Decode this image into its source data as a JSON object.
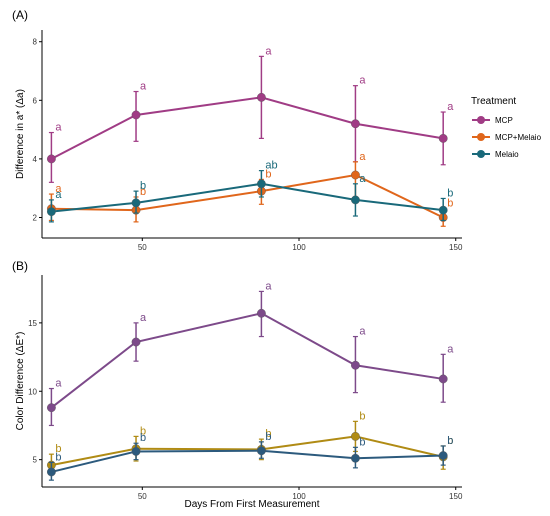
{
  "chart_data": [
    {
      "type": "line",
      "panel_label": "(A)",
      "ylabel": "Difference in a* (Δa)",
      "xlabel": "",
      "xlim": [
        18,
        152
      ],
      "ylim": [
        1.3,
        8.4
      ],
      "xticks": [
        50,
        100,
        150
      ],
      "yticks": [
        2,
        4,
        6,
        8
      ],
      "grid": false,
      "series": [
        {
          "name": "MCP",
          "color": "#a03c85",
          "x": [
            21,
            48,
            88,
            118,
            146
          ],
          "y": [
            4.0,
            5.5,
            6.1,
            5.2,
            4.7
          ],
          "err_low": [
            3.2,
            4.6,
            4.7,
            3.9,
            3.8
          ],
          "err_high": [
            4.9,
            6.3,
            7.5,
            6.5,
            5.6
          ],
          "letters": [
            "a",
            "a",
            "a",
            "a",
            "a"
          ]
        },
        {
          "name": "MCP+Melaio",
          "color": "#e0661b",
          "x": [
            21,
            48,
            88,
            118,
            146
          ],
          "y": [
            2.3,
            2.25,
            2.9,
            3.45,
            2.0
          ],
          "err_low": [
            1.9,
            1.85,
            2.45,
            2.7,
            1.7
          ],
          "err_high": [
            2.8,
            2.7,
            3.3,
            3.9,
            2.3
          ],
          "letters": [
            "a",
            "b",
            "b",
            "a",
            "b"
          ]
        },
        {
          "name": "Melaio",
          "color": "#19697a",
          "x": [
            21,
            48,
            88,
            118,
            146
          ],
          "y": [
            2.2,
            2.5,
            3.15,
            2.6,
            2.25
          ],
          "err_low": [
            1.85,
            2.15,
            2.7,
            2.05,
            1.9
          ],
          "err_high": [
            2.6,
            2.9,
            3.6,
            3.15,
            2.65
          ],
          "letters": [
            "a",
            "b",
            "ab",
            "a",
            "b"
          ]
        }
      ]
    },
    {
      "type": "line",
      "panel_label": "(B)",
      "ylabel": "Color Difference (ΔE*)",
      "xlabel": "Days From First Measurement",
      "xlim": [
        18,
        152
      ],
      "ylim": [
        3.0,
        18.5
      ],
      "xticks": [
        50,
        100,
        150
      ],
      "yticks": [
        5,
        10,
        15
      ],
      "grid": false,
      "series": [
        {
          "name": "",
          "color": "#7d4a8a",
          "x": [
            21,
            48,
            88,
            118,
            146
          ],
          "y": [
            8.8,
            13.6,
            15.7,
            11.9,
            10.9
          ],
          "err_low": [
            7.5,
            12.2,
            14.0,
            9.9,
            9.2
          ],
          "err_high": [
            10.2,
            15.0,
            17.3,
            14.0,
            12.7
          ],
          "letters": [
            "a",
            "a",
            "a",
            "a",
            "a"
          ]
        },
        {
          "name": "",
          "color": "#b08b14",
          "x": [
            21,
            48,
            88,
            118,
            146
          ],
          "y": [
            4.6,
            5.8,
            5.75,
            6.7,
            5.2
          ],
          "err_low": [
            3.9,
            4.9,
            5.0,
            5.6,
            4.3
          ],
          "err_high": [
            5.4,
            6.7,
            6.5,
            7.8,
            6.0
          ],
          "letters": [
            "b",
            "b",
            "b",
            "b",
            "b"
          ]
        },
        {
          "name": "",
          "color": "#2c5a7d",
          "x": [
            21,
            48,
            88,
            118,
            146
          ],
          "y": [
            4.1,
            5.6,
            5.65,
            5.1,
            5.3
          ],
          "err_low": [
            3.5,
            5.0,
            5.1,
            4.4,
            4.6
          ],
          "err_high": [
            4.8,
            6.2,
            6.3,
            5.9,
            6.0
          ],
          "letters": [
            "b",
            "b",
            "b",
            "b",
            "b"
          ]
        }
      ]
    }
  ],
  "legend": {
    "title": "Treatment",
    "placement": "right",
    "items": [
      {
        "label": "MCP",
        "color": "#a03c85"
      },
      {
        "label": "MCP+Melaio",
        "color": "#e0661b"
      },
      {
        "label": "Melaio",
        "color": "#19697a"
      }
    ]
  }
}
